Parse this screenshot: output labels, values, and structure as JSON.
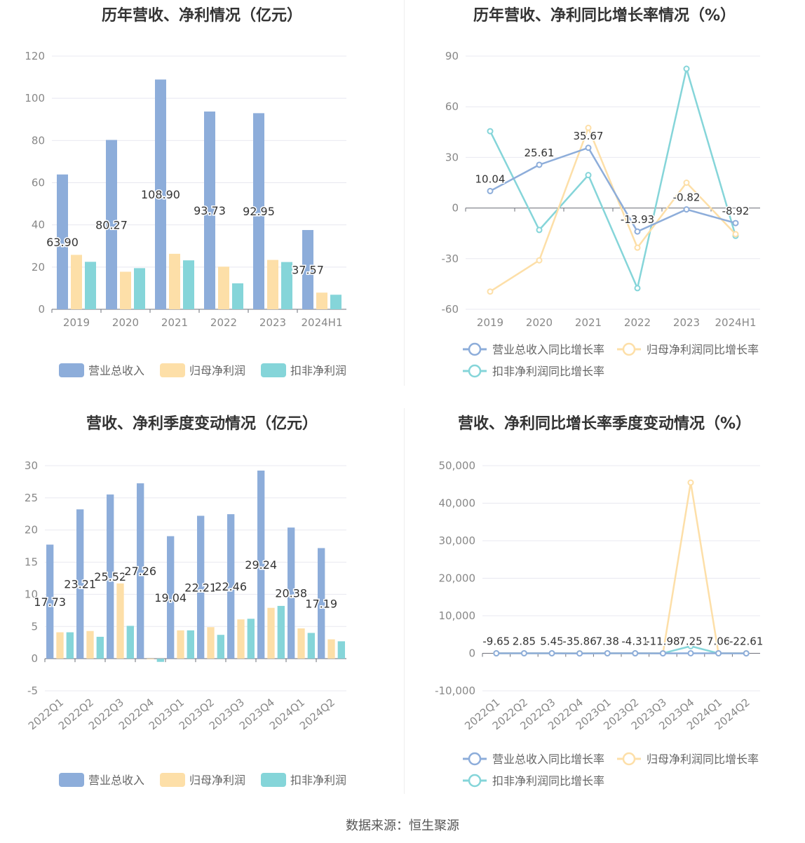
{
  "colors": {
    "revenue": "#8dadda",
    "netprofit": "#fddfa8",
    "deducted": "#85d5d9",
    "axis": "#6e7079",
    "grid": "#e8e8f0",
    "label": "#333333",
    "tick": "#888888",
    "legend_text": "#666666"
  },
  "legends": {
    "bar": [
      "营业总收入",
      "归母净利润",
      "扣非净利润"
    ],
    "line": [
      "营业总收入同比增长率",
      "归母净利润同比增长率",
      "扣非净利润同比增长率"
    ]
  },
  "footer": "数据来源：恒生聚源",
  "chart_data": [
    {
      "id": "annual-amounts",
      "type": "bar",
      "title": "历年营收、净利情况（亿元）",
      "categories": [
        "2019",
        "2020",
        "2021",
        "2022",
        "2023",
        "2024H1"
      ],
      "ylim": [
        0,
        120
      ],
      "yticks": [
        "0",
        "20",
        "40",
        "60",
        "80",
        "100",
        "120"
      ],
      "series": [
        {
          "name": "营业总收入",
          "values": [
            63.9,
            80.27,
            108.9,
            93.73,
            92.95,
            37.57
          ],
          "labels": [
            "63.90",
            "80.27",
            "108.90",
            "93.73",
            "92.95",
            "37.57"
          ]
        },
        {
          "name": "归母净利润",
          "values": [
            25.8,
            17.8,
            26.3,
            20.2,
            23.4,
            7.9
          ]
        },
        {
          "name": "扣非净利润",
          "values": [
            22.5,
            19.5,
            23.2,
            12.3,
            22.4,
            6.9
          ]
        }
      ],
      "legend_position": "bottom"
    },
    {
      "id": "annual-growth",
      "type": "line",
      "title": "历年营收、净利同比增长率情况（%）",
      "categories": [
        "2019",
        "2020",
        "2021",
        "2022",
        "2023",
        "2024H1"
      ],
      "ylim": [
        -60,
        90
      ],
      "yticks": [
        "-60",
        "-30",
        "0",
        "30",
        "60",
        "90"
      ],
      "series": [
        {
          "name": "营业总收入同比增长率",
          "values": [
            10.04,
            25.61,
            35.67,
            -13.93,
            -0.82,
            -8.92
          ],
          "labels": [
            "10.04",
            "25.61",
            "35.67",
            "-13.93",
            "-0.82",
            "-8.92"
          ]
        },
        {
          "name": "归母净利润同比增长率",
          "values": [
            -49.5,
            -31.0,
            47.5,
            -23.5,
            15.0,
            -15.5
          ]
        },
        {
          "name": "扣非净利润同比增长率",
          "values": [
            45.5,
            -13.0,
            19.5,
            -47.5,
            82.5,
            -16.5
          ]
        }
      ],
      "legend_position": "bottom"
    },
    {
      "id": "quarterly-amounts",
      "type": "bar",
      "title": "营收、净利季度变动情况（亿元）",
      "categories": [
        "2022Q1",
        "2022Q2",
        "2022Q3",
        "2022Q4",
        "2023Q1",
        "2023Q2",
        "2023Q3",
        "2023Q4",
        "2024Q1",
        "2024Q2"
      ],
      "ylim": [
        -5,
        30
      ],
      "yticks": [
        "-5",
        "0",
        "5",
        "10",
        "15",
        "20",
        "25",
        "30"
      ],
      "series": [
        {
          "name": "营业总收入",
          "values": [
            17.73,
            23.21,
            25.52,
            27.26,
            19.04,
            22.21,
            22.46,
            29.24,
            20.38,
            17.19
          ],
          "labels": [
            "17.73",
            "23.21",
            "25.52",
            "27.26",
            "19.04",
            "22.21",
            "22.46",
            "29.24",
            "20.38",
            "17.19"
          ]
        },
        {
          "name": "归母净利润",
          "values": [
            4.1,
            4.3,
            11.7,
            -0.1,
            4.4,
            4.9,
            6.1,
            7.9,
            4.7,
            3.0
          ]
        },
        {
          "name": "扣非净利润",
          "values": [
            4.1,
            3.4,
            5.1,
            -0.5,
            4.4,
            3.7,
            6.2,
            8.2,
            4.0,
            2.7
          ]
        }
      ],
      "legend_position": "bottom"
    },
    {
      "id": "quarterly-growth",
      "type": "line",
      "title": "营收、净利同比增长率季度变动情况（%）",
      "categories": [
        "2022Q1",
        "2022Q2",
        "2022Q3",
        "2022Q4",
        "2023Q1",
        "2023Q2",
        "2023Q3",
        "2023Q4",
        "2024Q1",
        "2024Q2"
      ],
      "ylim": [
        -10000,
        50000
      ],
      "yticks": [
        "-10,000",
        "0",
        "10,000",
        "20,000",
        "30,000",
        "40,000",
        "50,000"
      ],
      "series": [
        {
          "name": "营业总收入同比增长率",
          "values": [
            -9.65,
            2.85,
            5.45,
            -35.86,
            7.38,
            -4.31,
            -11.98,
            7.25,
            7.06,
            -22.61
          ],
          "labels": [
            "-9.65",
            "2.85",
            "5.45",
            "-35.86",
            "7.38",
            "-4.31",
            "-11.98",
            "7.25",
            "7.06",
            "-22.61"
          ]
        },
        {
          "name": "归母净利润同比增长率",
          "values": [
            0,
            0,
            0,
            0,
            0,
            0,
            0,
            45500,
            0,
            0
          ]
        },
        {
          "name": "扣非净利润同比增长率",
          "values": [
            0,
            0,
            0,
            0,
            0,
            0,
            0,
            1900,
            0,
            0
          ]
        }
      ],
      "legend_position": "bottom"
    }
  ]
}
